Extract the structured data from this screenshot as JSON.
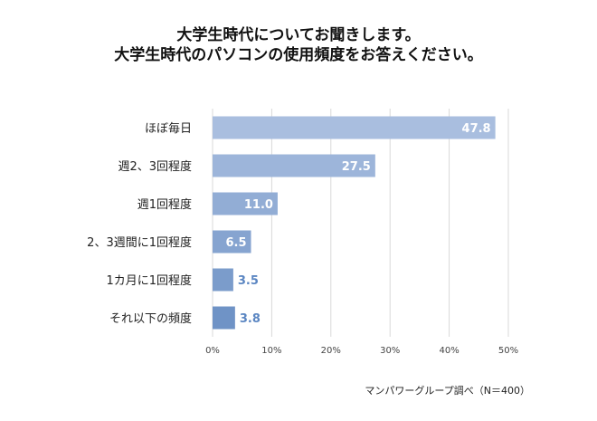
{
  "title_lines": [
    "大学生時代についてお聞きします。",
    "大学生時代のパソコンの使用頻度をお答えください。"
  ],
  "source": "マンパワーグループ調べ（N＝400）",
  "colors": {
    "bar_light": "#a9bedf",
    "bar_dark": "#6f93c6",
    "label_inside": "#ffffff",
    "label_outside": "#5b86c2",
    "grid": "#d9d9d9",
    "text": "#222222"
  },
  "chart_data": {
    "type": "bar",
    "orientation": "horizontal",
    "title": "大学生時代についてお聞きします。 大学生時代のパソコンの使用頻度をお答えください。",
    "categories": [
      "ほぼ毎日",
      "週2、3回程度",
      "週1回程度",
      "2、3週間に1回程度",
      "1カ月に1回程度",
      "それ以下の頻度"
    ],
    "values": [
      47.8,
      27.5,
      11.0,
      6.5,
      3.5,
      3.8
    ],
    "value_labels": [
      "47.8",
      "27.5",
      "11.0",
      "6.5",
      "3.5",
      "3.8"
    ],
    "xlim": [
      0,
      50
    ],
    "xticks": [
      "0%",
      "10%",
      "20%",
      "30%",
      "40%",
      "50%"
    ],
    "xlabel": "",
    "ylabel": "",
    "grid": true
  }
}
